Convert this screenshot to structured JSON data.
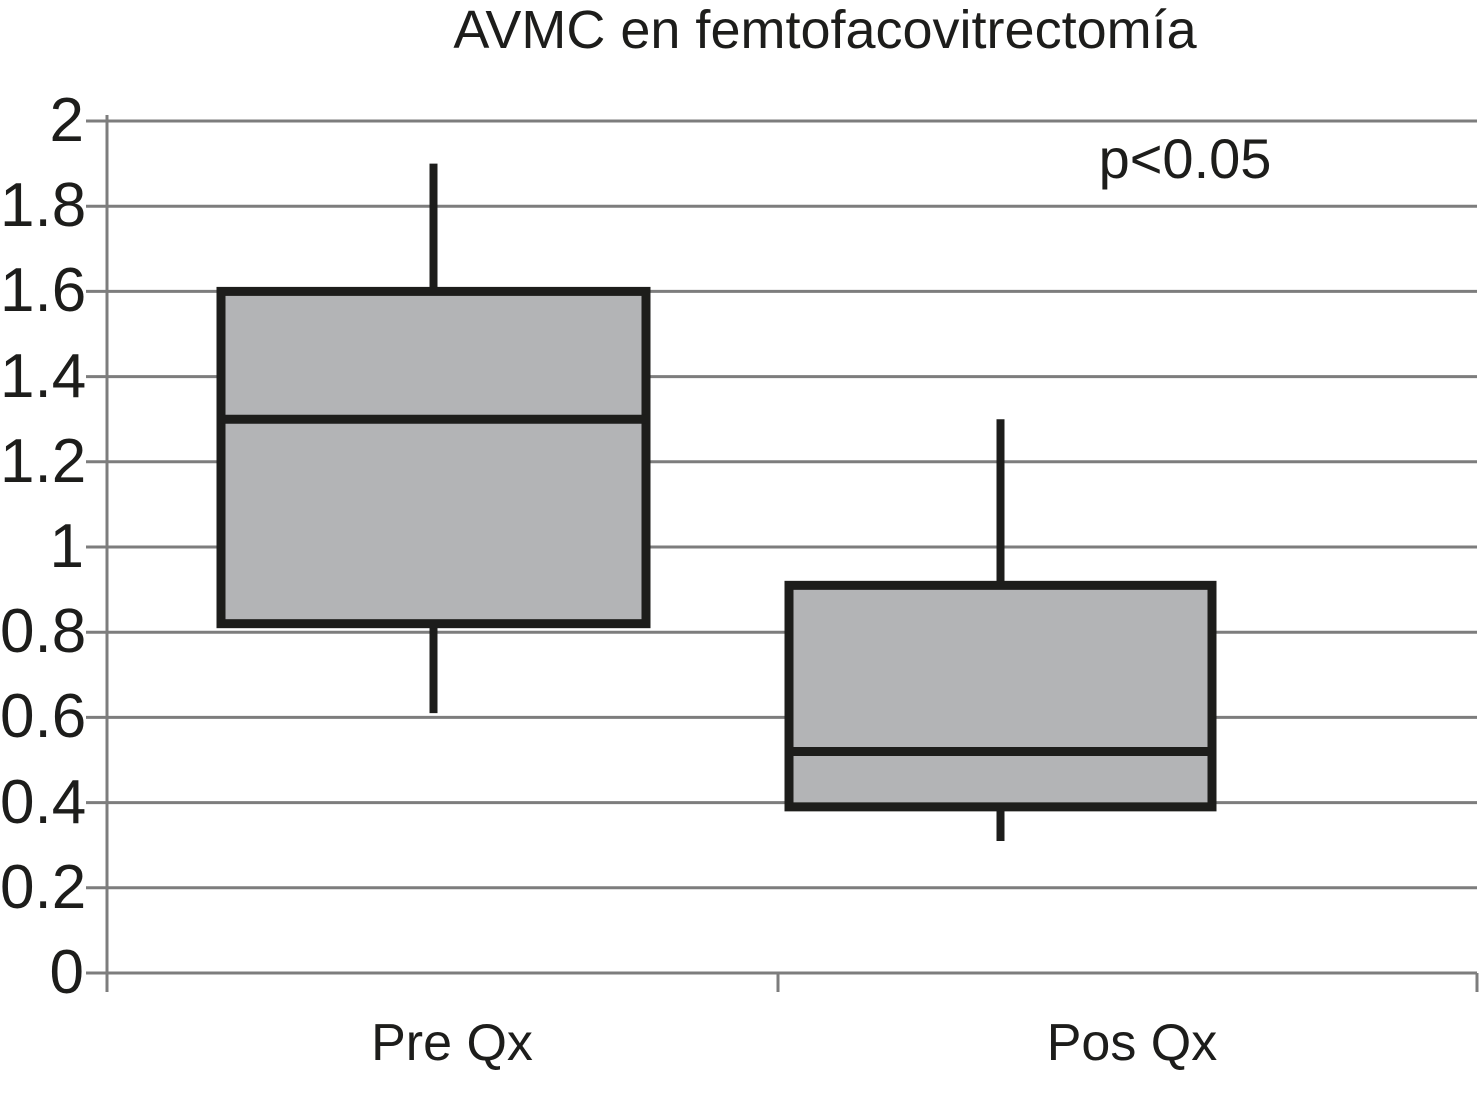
{
  "chart": {
    "title": "AVMC en femtofacovitrectomía",
    "annotation": "p<0.05"
  },
  "chart_data": {
    "type": "boxplot",
    "title": "AVMC en femtofacovitrectomía",
    "annotation": "p<0.05",
    "categories": [
      "Pre Qx",
      "Pos Qx"
    ],
    "series": [
      {
        "name": "Pre Qx",
        "whisker_low": 0.61,
        "q1": 0.82,
        "median": 1.3,
        "q3": 1.6,
        "whisker_high": 1.9
      },
      {
        "name": "Pos Qx",
        "whisker_low": 0.31,
        "q1": 0.39,
        "median": 0.52,
        "q3": 0.91,
        "whisker_high": 1.3
      }
    ],
    "y_axis": {
      "min": 0,
      "max": 2,
      "tick_step": 0.2,
      "tick_labels": [
        "0",
        "0.2",
        "0.4",
        "0.6",
        "0.8",
        "1",
        "1.2",
        "1.4",
        "1.6",
        "1.8",
        "2"
      ]
    },
    "x_axis": {
      "tick_labels": [
        "Pre Qx",
        "Pos Qx"
      ]
    },
    "grid": true,
    "legend": "none",
    "colors": {
      "box_fill": "#b3b4b6",
      "box_border": "#1d1d1b",
      "grid": "#7d7d7d",
      "text": "#1d1d1b",
      "background": "#ffffff"
    }
  }
}
